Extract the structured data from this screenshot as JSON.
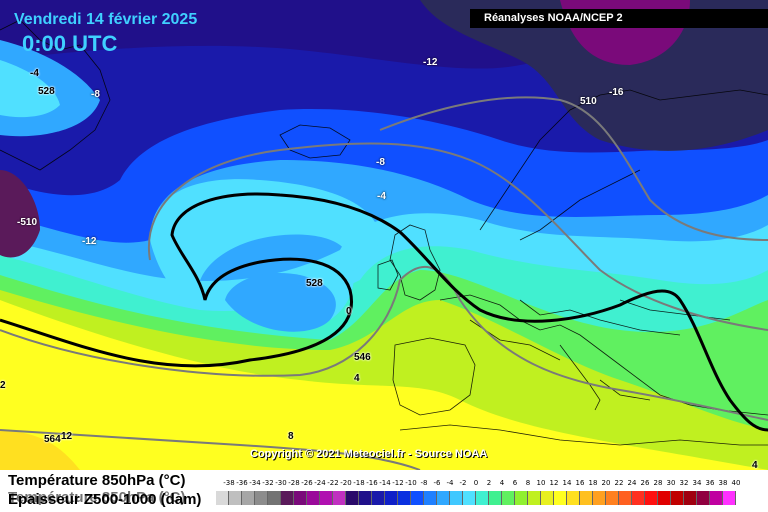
{
  "header": {
    "date": "Vendredi 14 février 2025",
    "time": "0:00 UTC",
    "source": "Réanalyses NOAA/NCEP 2"
  },
  "copyright": "Copyright © 2021 Meteociel.fr - Source NOAA",
  "legend": {
    "line1": "Température 850hPa (°C)",
    "line2": "Température 850hPa (°C)",
    "line3": "Epaisseur Z500-1000 (dam)",
    "scale_ticks": [
      "-38",
      "-36",
      "-34",
      "-32",
      "-30",
      "-28",
      "-26",
      "-24",
      "-22",
      "-20",
      "-18",
      "-16",
      "-14",
      "-12",
      "-10",
      "-8",
      "-6",
      "-4",
      "-2",
      "0",
      "2",
      "4",
      "6",
      "8",
      "10",
      "12",
      "14",
      "16",
      "18",
      "20",
      "22",
      "24",
      "26",
      "28",
      "30",
      "32",
      "34",
      "36",
      "38",
      "40"
    ],
    "scale_colors": [
      "#d9d9d9",
      "#bfbfbf",
      "#a6a6a6",
      "#8c8c8c",
      "#737373",
      "#5a1a5a",
      "#7a0a7a",
      "#9a0a9a",
      "#b010b0",
      "#c030c0",
      "#2a0a6a",
      "#20108a",
      "#1a1aaa",
      "#1020c8",
      "#0a30e0",
      "#1050ff",
      "#2080ff",
      "#30a8ff",
      "#40c8ff",
      "#50e0ff",
      "#40f0d0",
      "#40f090",
      "#60f060",
      "#90f030",
      "#c0f020",
      "#e8f020",
      "#ffff20",
      "#ffe020",
      "#ffc020",
      "#ffa020",
      "#ff8020",
      "#ff6020",
      "#ff3020",
      "#ff1010",
      "#e00000",
      "#c00000",
      "#a00010",
      "#900040",
      "#c000a0",
      "#ff30ff"
    ]
  },
  "map_labels": [
    {
      "text": "-4"
    },
    {
      "text": "528"
    },
    {
      "text": "-8"
    },
    {
      "text": "-12"
    },
    {
      "text": "510"
    },
    {
      "text": "-16"
    },
    {
      "text": "-8"
    },
    {
      "text": "-4"
    },
    {
      "text": "-510"
    },
    {
      "text": "-12"
    },
    {
      "text": "528"
    },
    {
      "text": "0"
    },
    {
      "text": "546"
    },
    {
      "text": "4"
    },
    {
      "text": "8"
    },
    {
      "text": "564"
    },
    {
      "text": "12"
    },
    {
      "text": "2"
    },
    {
      "text": "4"
    }
  ]
}
